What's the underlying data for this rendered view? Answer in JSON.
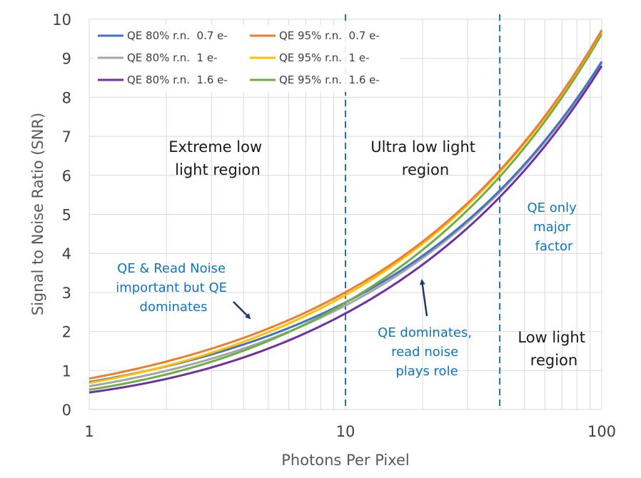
{
  "chart_data": {
    "type": "line",
    "x_scale": "log",
    "xlim": [
      1,
      100
    ],
    "ylim": [
      0,
      10
    ],
    "xlabel": "Photons Per Pixel",
    "ylabel": "Signal to Noise Ratio (SNR)",
    "x_ticks": [
      "1",
      "10",
      "100"
    ],
    "y_ticks": [
      "0",
      "1",
      "2",
      "3",
      "4",
      "5",
      "6",
      "7",
      "8",
      "9",
      "10"
    ],
    "vlines": [
      10,
      40
    ],
    "series": [
      {
        "name": "QE 80% r.n.  0.7 e-",
        "qe": 0.8,
        "read_noise": 0.7,
        "color": "#4472c4"
      },
      {
        "name": "QE 95% r.n.  0.7 e-",
        "qe": 0.95,
        "read_noise": 0.7,
        "color": "#ed7d31"
      },
      {
        "name": "QE 80% r.n.  1 e-",
        "qe": 0.8,
        "read_noise": 1.0,
        "color": "#a5a5a5"
      },
      {
        "name": "QE 95% r.n.  1 e-",
        "qe": 0.95,
        "read_noise": 1.0,
        "color": "#ffc000"
      },
      {
        "name": "QE 80% r.n.  1.6 e-",
        "qe": 0.8,
        "read_noise": 1.6,
        "color": "#7030a0"
      },
      {
        "name": "QE 95% r.n.  1.6 e-",
        "qe": 0.95,
        "read_noise": 1.6,
        "color": "#70ad47"
      }
    ],
    "regions": [
      {
        "lines": [
          "Extreme low",
          "light region"
        ]
      },
      {
        "lines": [
          "Ultra low light",
          "region"
        ]
      },
      {
        "lines": [
          "Low light",
          "region"
        ]
      }
    ],
    "annotations": [
      {
        "lines": [
          "QE & Read Noise",
          "important but QE",
          "dominates"
        ]
      },
      {
        "lines": [
          "QE dominates,",
          "read noise",
          "plays role"
        ]
      },
      {
        "lines": [
          "QE only",
          "major",
          "factor"
        ]
      }
    ]
  }
}
